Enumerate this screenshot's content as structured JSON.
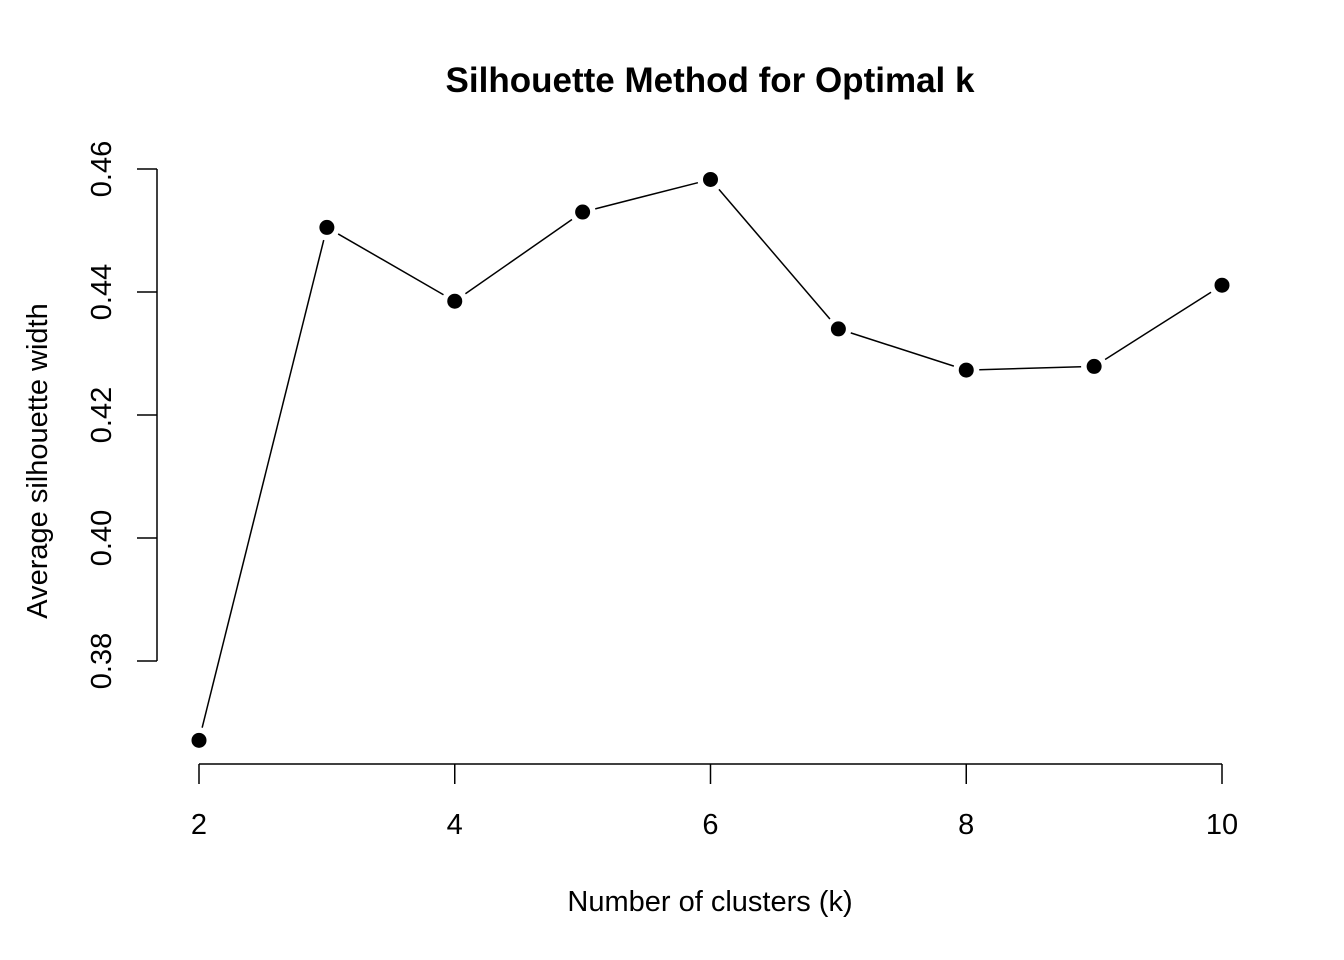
{
  "chart_data": {
    "type": "line",
    "title": "Silhouette Method for Optimal k",
    "xlabel": "Number of clusters (k)",
    "ylabel": "Average silhouette width",
    "x": [
      2,
      3,
      4,
      5,
      6,
      7,
      8,
      9,
      10
    ],
    "values": [
      0.3671,
      0.4505,
      0.4385,
      0.453,
      0.4583,
      0.434,
      0.4273,
      0.4279,
      0.4411
    ],
    "xlim": [
      2,
      10
    ],
    "ylim": [
      0.38,
      0.46
    ],
    "xticks": [
      "2",
      "4",
      "6",
      "8",
      "10"
    ],
    "yticks": [
      "0.38",
      "0.40",
      "0.42",
      "0.44",
      "0.46"
    ],
    "marker": "filled-circle",
    "grid": false,
    "legend": "none",
    "color": "#000000"
  }
}
